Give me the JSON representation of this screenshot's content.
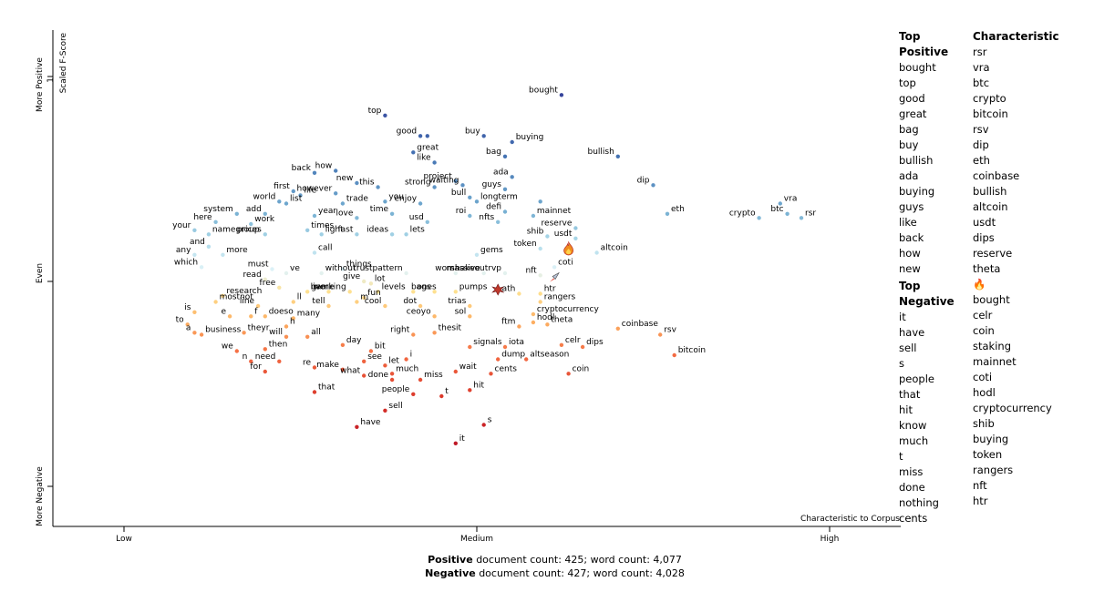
{
  "chart_data": {
    "type": "scatter",
    "title": "",
    "xlabel": "Characteristic to Corpus",
    "ylabel": "Scaled F-Score",
    "y_top_label": "More Positive",
    "y_mid_label": "Even",
    "y_bottom_label": "More Negative",
    "x_ticks": [
      "Low",
      "Medium",
      "High"
    ],
    "y_ticks": [
      "1",
      "0"
    ],
    "xlim": [
      0,
      1
    ],
    "ylim": [
      -1,
      1
    ],
    "grid": false,
    "legend": "none",
    "colors": {
      "positive": "#313695",
      "even": "#dde9f0",
      "negative": "#a50026"
    },
    "points": [
      {
        "x": 0.62,
        "y": 0.91,
        "label": "bought",
        "lp": "l"
      },
      {
        "x": 0.37,
        "y": 0.81,
        "label": "top",
        "lp": "l"
      },
      {
        "x": 0.42,
        "y": 0.71,
        "label": "good",
        "lp": "l"
      },
      {
        "x": 0.43,
        "y": 0.71,
        "label": ""
      },
      {
        "x": 0.41,
        "y": 0.63,
        "label": "great",
        "lp": "r"
      },
      {
        "x": 0.44,
        "y": 0.58,
        "label": "like",
        "lp": "l"
      },
      {
        "x": 0.51,
        "y": 0.71,
        "label": "buy",
        "lp": "l"
      },
      {
        "x": 0.55,
        "y": 0.68,
        "label": "buying",
        "lp": "r"
      },
      {
        "x": 0.54,
        "y": 0.61,
        "label": "bag",
        "lp": "l"
      },
      {
        "x": 0.7,
        "y": 0.61,
        "label": "bullish",
        "lp": "l"
      },
      {
        "x": 0.27,
        "y": 0.53,
        "label": "back",
        "lp": "l"
      },
      {
        "x": 0.3,
        "y": 0.54,
        "label": "how",
        "lp": "l"
      },
      {
        "x": 0.36,
        "y": 0.46,
        "label": "this",
        "lp": "l"
      },
      {
        "x": 0.44,
        "y": 0.46,
        "label": "strong",
        "lp": "l"
      },
      {
        "x": 0.47,
        "y": 0.49,
        "label": "project",
        "lp": "l"
      },
      {
        "x": 0.55,
        "y": 0.51,
        "label": "ada",
        "lp": "l"
      },
      {
        "x": 0.48,
        "y": 0.47,
        "label": "waiting",
        "lp": "l"
      },
      {
        "x": 0.54,
        "y": 0.45,
        "label": "guys",
        "lp": "l"
      },
      {
        "x": 0.33,
        "y": 0.48,
        "label": "new",
        "lp": "l"
      },
      {
        "x": 0.24,
        "y": 0.44,
        "label": "first",
        "lp": "l"
      },
      {
        "x": 0.25,
        "y": 0.42,
        "label": "life",
        "lp": "r"
      },
      {
        "x": 0.3,
        "y": 0.43,
        "label": "however",
        "lp": "l"
      },
      {
        "x": 0.37,
        "y": 0.39,
        "label": "you",
        "lp": "r"
      },
      {
        "x": 0.42,
        "y": 0.38,
        "label": "enjoy",
        "lp": "l"
      },
      {
        "x": 0.49,
        "y": 0.41,
        "label": "bull",
        "lp": "l"
      },
      {
        "x": 0.5,
        "y": 0.39,
        "label": "longterm",
        "lp": "r"
      },
      {
        "x": 0.59,
        "y": 0.39,
        "label": ""
      },
      {
        "x": 0.31,
        "y": 0.38,
        "label": "trade",
        "lp": "r"
      },
      {
        "x": 0.22,
        "y": 0.39,
        "label": "world",
        "lp": "l"
      },
      {
        "x": 0.23,
        "y": 0.38,
        "label": "list",
        "lp": "r"
      },
      {
        "x": 0.54,
        "y": 0.34,
        "label": "defi",
        "lp": "l"
      },
      {
        "x": 0.16,
        "y": 0.33,
        "label": "system",
        "lp": "l"
      },
      {
        "x": 0.2,
        "y": 0.33,
        "label": "add",
        "lp": "l"
      },
      {
        "x": 0.27,
        "y": 0.32,
        "label": "year",
        "lp": "r"
      },
      {
        "x": 0.33,
        "y": 0.31,
        "label": "love",
        "lp": "l"
      },
      {
        "x": 0.38,
        "y": 0.33,
        "label": "time",
        "lp": "l"
      },
      {
        "x": 0.49,
        "y": 0.32,
        "label": "roi",
        "lp": "l"
      },
      {
        "x": 0.58,
        "y": 0.32,
        "label": "mainnet",
        "lp": "r"
      },
      {
        "x": 0.77,
        "y": 0.33,
        "label": "eth",
        "lp": "r"
      },
      {
        "x": 0.75,
        "y": 0.47,
        "label": "dip",
        "lp": "l"
      },
      {
        "x": 0.13,
        "y": 0.29,
        "label": "here",
        "lp": "l"
      },
      {
        "x": 0.18,
        "y": 0.28,
        "label": "work",
        "lp": "r"
      },
      {
        "x": 0.43,
        "y": 0.29,
        "label": "usd",
        "lp": "l"
      },
      {
        "x": 0.53,
        "y": 0.29,
        "label": "nfts",
        "lp": "l"
      },
      {
        "x": 0.26,
        "y": 0.25,
        "label": "times",
        "lp": "r"
      },
      {
        "x": 0.64,
        "y": 0.26,
        "label": "reserve",
        "lp": "l"
      },
      {
        "x": 0.1,
        "y": 0.25,
        "label": "your",
        "lp": "l"
      },
      {
        "x": 0.12,
        "y": 0.23,
        "label": "namegroup",
        "lp": "r"
      },
      {
        "x": 0.2,
        "y": 0.23,
        "label": "prices",
        "lp": "l"
      },
      {
        "x": 0.28,
        "y": 0.23,
        "label": "light",
        "lp": "r"
      },
      {
        "x": 0.33,
        "y": 0.23,
        "label": "fast",
        "lp": "l"
      },
      {
        "x": 0.38,
        "y": 0.23,
        "label": "ideas",
        "lp": "l"
      },
      {
        "x": 0.4,
        "y": 0.23,
        "label": "lets",
        "lp": "r"
      },
      {
        "x": 0.6,
        "y": 0.22,
        "label": "shib",
        "lp": "l"
      },
      {
        "x": 0.64,
        "y": 0.21,
        "label": "usdt",
        "lp": "l"
      },
      {
        "x": 0.93,
        "y": 0.38,
        "label": "vra",
        "lp": "r"
      },
      {
        "x": 0.94,
        "y": 0.33,
        "label": "btc",
        "lp": "l"
      },
      {
        "x": 0.9,
        "y": 0.31,
        "label": "crypto",
        "lp": "l"
      },
      {
        "x": 0.96,
        "y": 0.31,
        "label": "rsr",
        "lp": "r"
      },
      {
        "x": 0.12,
        "y": 0.17,
        "label": "and",
        "lp": "l"
      },
      {
        "x": 0.59,
        "y": 0.16,
        "label": "token",
        "lp": "l"
      },
      {
        "x": 0.63,
        "y": 0.16,
        "label": "",
        "icon": "fire"
      },
      {
        "x": 0.67,
        "y": 0.14,
        "label": "altcoin",
        "lp": "r"
      },
      {
        "x": 0.1,
        "y": 0.13,
        "label": "any",
        "lp": "l"
      },
      {
        "x": 0.14,
        "y": 0.13,
        "label": "more",
        "lp": "r"
      },
      {
        "x": 0.27,
        "y": 0.14,
        "label": "call",
        "lp": "r"
      },
      {
        "x": 0.5,
        "y": 0.13,
        "label": "gems",
        "lp": "r"
      },
      {
        "x": 0.61,
        "y": 0.07,
        "label": "coti",
        "lp": "r"
      },
      {
        "x": 0.11,
        "y": 0.07,
        "label": "which",
        "lp": "l"
      },
      {
        "x": 0.21,
        "y": 0.06,
        "label": "must",
        "lp": "l"
      },
      {
        "x": 0.31,
        "y": 0.06,
        "label": "things",
        "lp": "r"
      },
      {
        "x": 0.23,
        "y": 0.04,
        "label": "ve",
        "lp": "r"
      },
      {
        "x": 0.28,
        "y": 0.04,
        "label": "without",
        "lp": "r"
      },
      {
        "x": 0.4,
        "y": 0.04,
        "label": "trustpattern",
        "lp": "l"
      },
      {
        "x": 0.47,
        "y": 0.04,
        "label": "won",
        "lp": "l"
      },
      {
        "x": 0.51,
        "y": 0.04,
        "label": "massive",
        "lp": "l"
      },
      {
        "x": 0.54,
        "y": 0.04,
        "label": "shakeoutrvp",
        "lp": "l"
      },
      {
        "x": 0.59,
        "y": 0.03,
        "label": "nft",
        "lp": "l"
      },
      {
        "x": 0.61,
        "y": 0.02,
        "label": "",
        "icon": "rocket"
      },
      {
        "x": 0.2,
        "y": 0.01,
        "label": "read",
        "lp": "l"
      },
      {
        "x": 0.34,
        "y": 0.0,
        "label": "give",
        "lp": "l"
      },
      {
        "x": 0.35,
        "y": -0.01,
        "label": "lot",
        "lp": "r"
      },
      {
        "x": 0.22,
        "y": -0.03,
        "label": "free",
        "lp": "l"
      },
      {
        "x": 0.26,
        "y": -0.05,
        "label": "game",
        "lp": "r"
      },
      {
        "x": 0.29,
        "y": -0.05,
        "label": "live",
        "lp": "l"
      },
      {
        "x": 0.32,
        "y": -0.05,
        "label": "working",
        "lp": "l"
      },
      {
        "x": 0.36,
        "y": -0.05,
        "label": "levels",
        "lp": "r"
      },
      {
        "x": 0.41,
        "y": -0.05,
        "label": "ones",
        "lp": "r"
      },
      {
        "x": 0.44,
        "y": -0.05,
        "label": "bags",
        "lp": "l"
      },
      {
        "x": 0.47,
        "y": -0.05,
        "label": "pumps",
        "lp": "r"
      },
      {
        "x": 0.53,
        "y": -0.04,
        "label": "",
        "icon": "burst"
      },
      {
        "x": 0.56,
        "y": -0.06,
        "label": "ath",
        "lp": "l"
      },
      {
        "x": 0.59,
        "y": -0.06,
        "label": "htr",
        "lp": "r"
      },
      {
        "x": 0.14,
        "y": -0.07,
        "label": "research",
        "lp": "r"
      },
      {
        "x": 0.34,
        "y": -0.08,
        "label": "fun",
        "lp": "r"
      },
      {
        "x": 0.13,
        "y": -0.1,
        "label": "mostnot",
        "lp": "r"
      },
      {
        "x": 0.24,
        "y": -0.1,
        "label": "ll",
        "lp": "r"
      },
      {
        "x": 0.33,
        "y": -0.1,
        "label": "m",
        "lp": "r"
      },
      {
        "x": 0.59,
        "y": -0.1,
        "label": "rangers",
        "lp": "r"
      },
      {
        "x": 0.19,
        "y": -0.12,
        "label": "line",
        "lp": "l"
      },
      {
        "x": 0.29,
        "y": -0.12,
        "label": "tell",
        "lp": "l"
      },
      {
        "x": 0.37,
        "y": -0.12,
        "label": "cool",
        "lp": "l"
      },
      {
        "x": 0.42,
        "y": -0.12,
        "label": "dot",
        "lp": "l"
      },
      {
        "x": 0.49,
        "y": -0.12,
        "label": "trias",
        "lp": "l"
      },
      {
        "x": 0.1,
        "y": -0.15,
        "label": "is",
        "lp": "l"
      },
      {
        "x": 0.58,
        "y": -0.16,
        "label": "cryptocurrency",
        "lp": "r"
      },
      {
        "x": 0.15,
        "y": -0.17,
        "label": "e",
        "lp": "l"
      },
      {
        "x": 0.2,
        "y": -0.17,
        "label": "doeso",
        "lp": "r"
      },
      {
        "x": 0.18,
        "y": -0.17,
        "label": "f",
        "lp": "r"
      },
      {
        "x": 0.24,
        "y": -0.18,
        "label": "many",
        "lp": "r"
      },
      {
        "x": 0.44,
        "y": -0.17,
        "label": "ceoyo",
        "lp": "l"
      },
      {
        "x": 0.49,
        "y": -0.17,
        "label": "sol",
        "lp": "l"
      },
      {
        "x": 0.58,
        "y": -0.2,
        "label": "hodl",
        "lp": "r"
      },
      {
        "x": 0.6,
        "y": -0.21,
        "label": "theta",
        "lp": "r"
      },
      {
        "x": 0.7,
        "y": -0.23,
        "label": "coinbase",
        "lp": "r"
      },
      {
        "x": 0.56,
        "y": -0.22,
        "label": "ftm",
        "lp": "l"
      },
      {
        "x": 0.09,
        "y": -0.21,
        "label": "to",
        "lp": "l"
      },
      {
        "x": 0.23,
        "y": -0.22,
        "label": "h",
        "lp": "r"
      },
      {
        "x": 0.1,
        "y": -0.25,
        "label": "a",
        "lp": "l"
      },
      {
        "x": 0.11,
        "y": -0.26,
        "label": "business",
        "lp": "r"
      },
      {
        "x": 0.17,
        "y": -0.25,
        "label": "theyr",
        "lp": "r"
      },
      {
        "x": 0.23,
        "y": -0.27,
        "label": "will",
        "lp": "l"
      },
      {
        "x": 0.26,
        "y": -0.27,
        "label": "all",
        "lp": "r"
      },
      {
        "x": 0.41,
        "y": -0.26,
        "label": "right",
        "lp": "l"
      },
      {
        "x": 0.44,
        "y": -0.25,
        "label": "thesit",
        "lp": "r"
      },
      {
        "x": 0.76,
        "y": -0.26,
        "label": "rsv",
        "lp": "r"
      },
      {
        "x": 0.62,
        "y": -0.31,
        "label": "celr",
        "lp": "r"
      },
      {
        "x": 0.65,
        "y": -0.32,
        "label": "dips",
        "lp": "r"
      },
      {
        "x": 0.54,
        "y": -0.32,
        "label": "iota",
        "lp": "r"
      },
      {
        "x": 0.49,
        "y": -0.32,
        "label": "signals",
        "lp": "r"
      },
      {
        "x": 0.31,
        "y": -0.31,
        "label": "day",
        "lp": "r"
      },
      {
        "x": 0.35,
        "y": -0.34,
        "label": "bit",
        "lp": "r"
      },
      {
        "x": 0.2,
        "y": -0.33,
        "label": "then",
        "lp": "r"
      },
      {
        "x": 0.78,
        "y": -0.36,
        "label": "bitcoin",
        "lp": "r"
      },
      {
        "x": 0.16,
        "y": -0.34,
        "label": "we",
        "lp": "l"
      },
      {
        "x": 0.4,
        "y": -0.38,
        "label": "i",
        "lp": "r"
      },
      {
        "x": 0.53,
        "y": -0.38,
        "label": "dump",
        "lp": "r"
      },
      {
        "x": 0.57,
        "y": -0.38,
        "label": "altseason",
        "lp": "r"
      },
      {
        "x": 0.18,
        "y": -0.39,
        "label": "n",
        "lp": "l"
      },
      {
        "x": 0.22,
        "y": -0.39,
        "label": "need",
        "lp": "l"
      },
      {
        "x": 0.34,
        "y": -0.39,
        "label": "see",
        "lp": "r"
      },
      {
        "x": 0.37,
        "y": -0.41,
        "label": "let",
        "lp": "r"
      },
      {
        "x": 0.27,
        "y": -0.42,
        "label": "re",
        "lp": "l"
      },
      {
        "x": 0.31,
        "y": -0.43,
        "label": "make",
        "lp": "l"
      },
      {
        "x": 0.47,
        "y": -0.44,
        "label": "wait",
        "lp": "r"
      },
      {
        "x": 0.38,
        "y": -0.45,
        "label": "much",
        "lp": "r"
      },
      {
        "x": 0.34,
        "y": -0.46,
        "label": "what",
        "lp": "l"
      },
      {
        "x": 0.52,
        "y": -0.45,
        "label": "cents",
        "lp": "r"
      },
      {
        "x": 0.63,
        "y": -0.45,
        "label": "coin",
        "lp": "r"
      },
      {
        "x": 0.2,
        "y": -0.44,
        "label": "for",
        "lp": "l"
      },
      {
        "x": 0.38,
        "y": -0.48,
        "label": "done",
        "lp": "l"
      },
      {
        "x": 0.42,
        "y": -0.48,
        "label": "miss",
        "lp": "r"
      },
      {
        "x": 0.27,
        "y": -0.54,
        "label": "that",
        "lp": "r"
      },
      {
        "x": 0.49,
        "y": -0.53,
        "label": "hit",
        "lp": "r"
      },
      {
        "x": 0.41,
        "y": -0.55,
        "label": "people",
        "lp": "l"
      },
      {
        "x": 0.45,
        "y": -0.56,
        "label": "t",
        "lp": "r"
      },
      {
        "x": 0.37,
        "y": -0.63,
        "label": "sell",
        "lp": "r"
      },
      {
        "x": 0.51,
        "y": -0.7,
        "label": "s",
        "lp": "r"
      },
      {
        "x": 0.33,
        "y": -0.71,
        "label": "have",
        "lp": "r"
      },
      {
        "x": 0.47,
        "y": -0.79,
        "label": "it",
        "lp": "r"
      }
    ]
  },
  "side": {
    "top_positive_header": "Top Positive",
    "characteristic_header": "Characteristic",
    "top_negative_header": "Top Negative",
    "top_positive": [
      "bought",
      "top",
      "good",
      "great",
      "bag",
      "buy",
      "bullish",
      "ada",
      "buying",
      "guys",
      "like",
      "back",
      "how",
      "new"
    ],
    "top_negative": [
      "it",
      "have",
      "sell",
      "s",
      "people",
      "that",
      "hit",
      "know",
      "much",
      "t",
      "miss",
      "done",
      "nothing",
      "cents"
    ],
    "characteristic": [
      "rsr",
      "vra",
      "btc",
      "crypto",
      "bitcoin",
      "rsv",
      "dip",
      "eth",
      "coinbase",
      "bullish",
      "altcoin",
      "usdt",
      "dips",
      "reserve",
      "theta",
      "🔥",
      "bought",
      "celr",
      "coin",
      "staking",
      "mainnet",
      "coti",
      "hodl",
      "cryptocurrency",
      "shib",
      "buying",
      "token",
      "rangers",
      "nft",
      "htr"
    ]
  },
  "footer": {
    "pos_label": "Positive",
    "pos_text": " document count: 425; word count: 4,077",
    "neg_label": "Negative",
    "neg_text": " document count: 427; word count: 4,028"
  }
}
